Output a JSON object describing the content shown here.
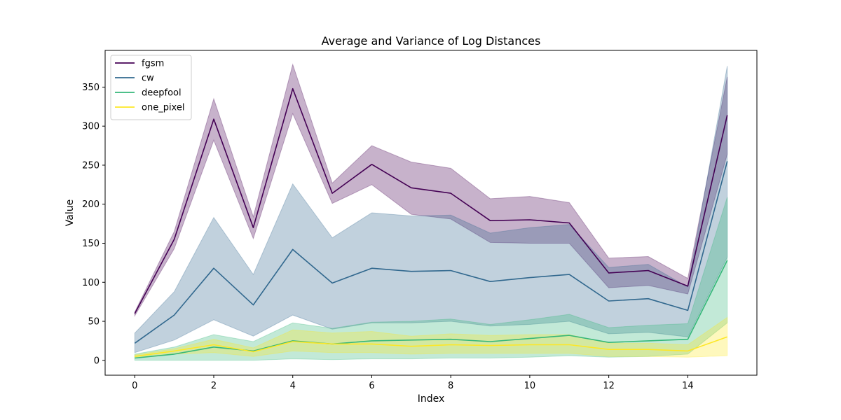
{
  "chart_data": {
    "type": "line",
    "title": "Average and Variance of Log Distances",
    "xlabel": "Index",
    "ylabel": "Value",
    "xlim": [
      -0.75,
      15.75
    ],
    "ylim": [
      -19,
      397
    ],
    "xticks": [
      0,
      2,
      4,
      6,
      8,
      10,
      12,
      14
    ],
    "yticks": [
      0,
      50,
      100,
      150,
      200,
      250,
      300,
      350
    ],
    "grid": false,
    "legend_position": "top-left",
    "x": [
      0,
      1,
      2,
      3,
      4,
      5,
      6,
      7,
      8,
      9,
      10,
      11,
      12,
      13,
      14,
      15
    ],
    "series": [
      {
        "name": "fgsm",
        "color": "#440154",
        "mean": [
          60,
          155,
          309,
          170,
          348,
          214,
          251,
          221,
          214,
          179,
          180,
          176,
          112,
          115,
          95,
          314
        ],
        "lower": [
          57,
          143,
          282,
          156,
          316,
          201,
          225,
          187,
          181,
          151,
          150,
          150,
          93,
          96,
          85,
          264
        ],
        "upper": [
          62,
          165,
          335,
          184,
          379,
          227,
          275,
          254,
          246,
          207,
          210,
          202,
          131,
          133,
          105,
          363
        ]
      },
      {
        "name": "cw",
        "color": "#31688e",
        "mean": [
          22,
          58,
          118,
          71,
          142,
          99,
          118,
          114,
          115,
          101,
          106,
          110,
          76,
          79,
          64,
          255
        ],
        "lower": [
          10,
          26,
          52,
          31,
          58,
          40,
          48,
          48,
          50,
          44,
          46,
          50,
          34,
          36,
          30,
          132
        ],
        "upper": [
          35,
          88,
          183,
          110,
          226,
          157,
          189,
          185,
          186,
          163,
          170,
          174,
          119,
          123,
          94,
          377
        ]
      },
      {
        "name": "deepfool",
        "color": "#35b779",
        "mean": [
          3,
          8,
          17,
          12,
          25,
          21,
          25,
          26,
          27,
          24,
          28,
          32,
          23,
          25,
          27,
          128
        ],
        "lower": [
          0,
          0,
          0,
          0,
          2,
          1,
          2,
          2,
          3,
          3,
          4,
          6,
          4,
          5,
          8,
          48
        ],
        "upper": [
          8,
          17,
          33,
          24,
          48,
          41,
          49,
          50,
          53,
          46,
          52,
          59,
          42,
          45,
          47,
          209
        ]
      },
      {
        "name": "one_pixel",
        "color": "#fde725",
        "mean": [
          5,
          12,
          20,
          11,
          24,
          21,
          21,
          18,
          20,
          19,
          20,
          20,
          14,
          14,
          12,
          30
        ],
        "lower": [
          3,
          8,
          10,
          5,
          12,
          10,
          10,
          8,
          9,
          9,
          9,
          9,
          5,
          5,
          4,
          6
        ],
        "upper": [
          7,
          15,
          27,
          16,
          39,
          35,
          37,
          31,
          34,
          32,
          33,
          33,
          22,
          22,
          20,
          55
        ]
      }
    ]
  }
}
